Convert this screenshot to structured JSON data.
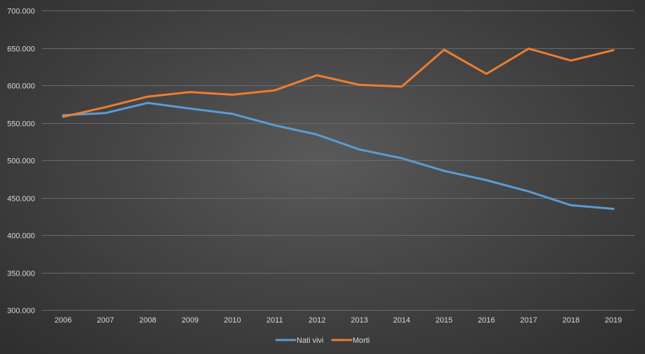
{
  "chart_data": {
    "type": "line",
    "title": "",
    "xlabel": "",
    "ylabel": "",
    "categories": [
      "2006",
      "2007",
      "2008",
      "2009",
      "2010",
      "2011",
      "2012",
      "2013",
      "2014",
      "2015",
      "2016",
      "2017",
      "2018",
      "2019"
    ],
    "ylim": [
      300000,
      700000
    ],
    "y_ticks": [
      300000,
      350000,
      400000,
      450000,
      500000,
      550000,
      600000,
      650000,
      700000
    ],
    "y_tick_labels": [
      "300.000",
      "350.000",
      "400.000",
      "450.000",
      "500.000",
      "550.000",
      "600.000",
      "650.000",
      "700.000"
    ],
    "grid": "horizontal",
    "legend_position": "bottom",
    "series": [
      {
        "name": "Nati vivi",
        "color": "#5b9bd5",
        "values": [
          560000,
          563000,
          576500,
          569000,
          561900,
          546600,
          534200,
          514300,
          502600,
          485800,
          473400,
          458200,
          439800,
          435000
        ]
      },
      {
        "name": "Morti",
        "color": "#ed7d31",
        "values": [
          558000,
          570800,
          585000,
          591000,
          587500,
          593400,
          613500,
          600700,
          598400,
          647600,
          615300,
          649100,
          633100,
          647000
        ]
      }
    ]
  }
}
